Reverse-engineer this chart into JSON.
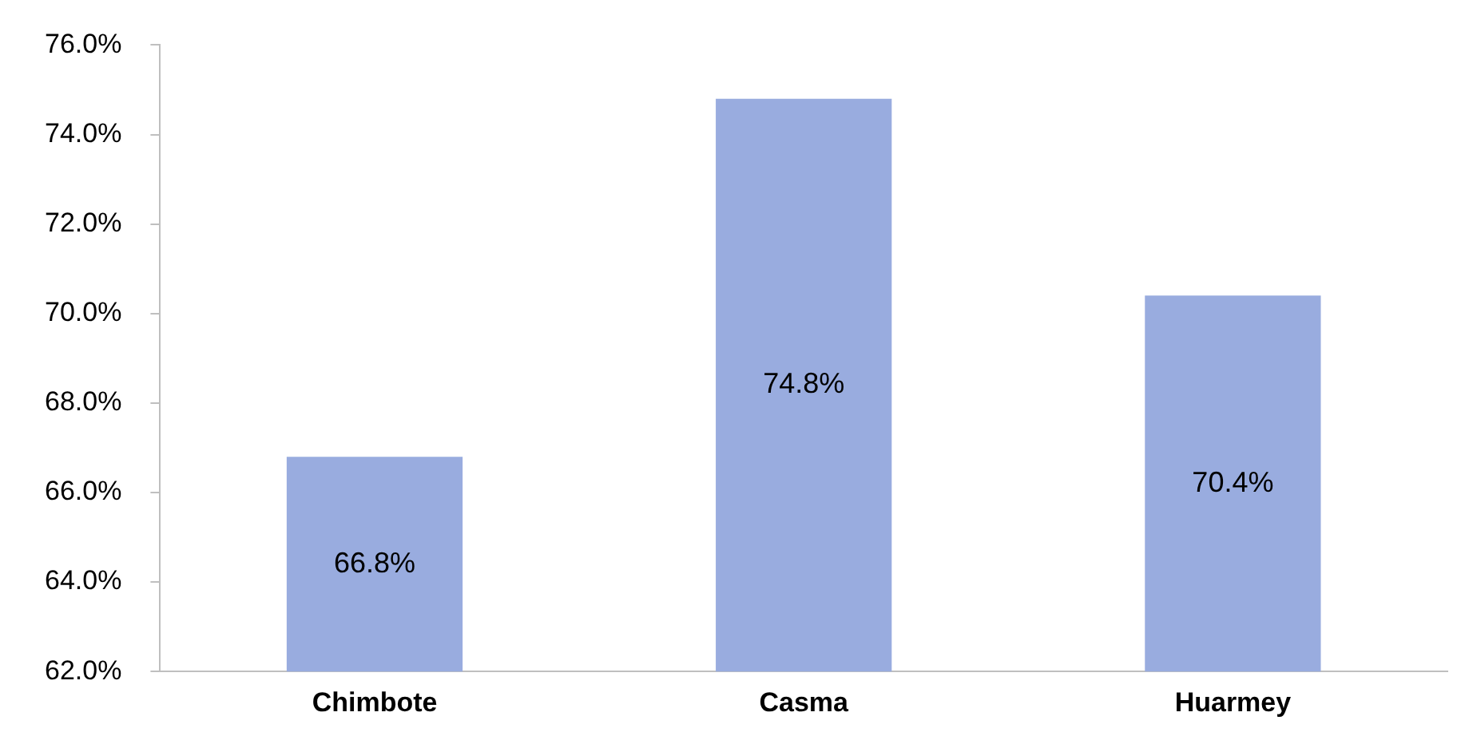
{
  "chart_data": {
    "type": "bar",
    "categories": [
      "Chimbote",
      "Casma",
      "Huarmey"
    ],
    "values": [
      66.8,
      74.8,
      70.4
    ],
    "color": "#99acdf",
    "value_labels": [
      "66.8%",
      "74.8%",
      "70.4%"
    ],
    "ylim": [
      62,
      76
    ],
    "yticks": [
      {
        "value": 62,
        "label": "62.0%"
      },
      {
        "value": 64,
        "label": "64.0%"
      },
      {
        "value": 66,
        "label": "66.0%"
      },
      {
        "value": 68,
        "label": "68.0%"
      },
      {
        "value": 70,
        "label": "70.0%"
      },
      {
        "value": 72,
        "label": "72.0%"
      },
      {
        "value": 74,
        "label": "74.0%"
      },
      {
        "value": 76,
        "label": "76.0%"
      }
    ],
    "grid": false,
    "legend": false
  }
}
